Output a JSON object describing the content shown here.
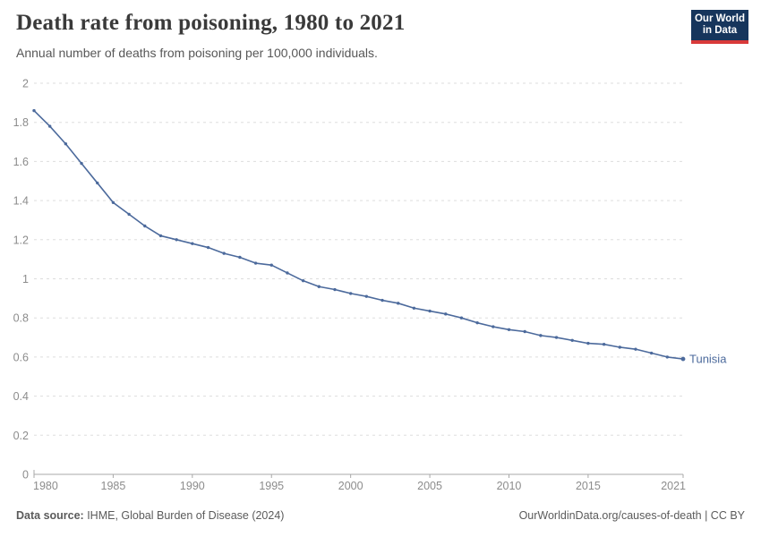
{
  "header": {
    "title": "Death rate from poisoning, 1980 to 2021",
    "subtitle": "Annual number of deaths from poisoning per 100,000 individuals.",
    "logo_line1": "Our World",
    "logo_line2": "in Data",
    "logo_bg_color": "#16355c",
    "logo_accent_color": "#d93a3a"
  },
  "footer": {
    "source_label": "Data source:",
    "source_value": " IHME, Global Burden of Disease (2024)",
    "link_text": "OurWorldinData.org/causes-of-death | CC BY"
  },
  "chart_data": {
    "type": "line",
    "title": "Death rate from poisoning, 1980 to 2021",
    "xlabel": "",
    "ylabel": "",
    "xlim": [
      1980,
      2021
    ],
    "ylim": [
      0,
      2
    ],
    "grid": "dashed-horizontal",
    "legend": "end-of-line-label",
    "xticks": [
      1980,
      1985,
      1990,
      1995,
      2000,
      2005,
      2010,
      2015,
      2021
    ],
    "yticks": [
      0,
      0.2,
      0.4,
      0.6,
      0.8,
      1,
      1.2,
      1.4,
      1.6,
      1.8,
      2
    ],
    "ytick_labels": [
      "0",
      "0.2",
      "0.4",
      "0.6",
      "0.8",
      "1",
      "1.2",
      "1.4",
      "1.6",
      "1.8",
      "2"
    ],
    "colors": {
      "line": "#4c6a9c",
      "grid": "#dddddd",
      "axis": "#a8a8a8",
      "tick_text": "#8c8c8c"
    },
    "series": [
      {
        "name": "Tunisia",
        "color": "#4c6a9c",
        "x": [
          1980,
          1981,
          1982,
          1983,
          1984,
          1985,
          1986,
          1987,
          1988,
          1989,
          1990,
          1991,
          1992,
          1993,
          1994,
          1995,
          1996,
          1997,
          1998,
          1999,
          2000,
          2001,
          2002,
          2003,
          2004,
          2005,
          2006,
          2007,
          2008,
          2009,
          2010,
          2011,
          2012,
          2013,
          2014,
          2015,
          2016,
          2017,
          2018,
          2019,
          2020,
          2021
        ],
        "values": [
          1.86,
          1.78,
          1.69,
          1.59,
          1.49,
          1.39,
          1.33,
          1.27,
          1.22,
          1.2,
          1.18,
          1.16,
          1.13,
          1.11,
          1.08,
          1.07,
          1.03,
          0.99,
          0.96,
          0.945,
          0.925,
          0.91,
          0.89,
          0.875,
          0.85,
          0.835,
          0.82,
          0.8,
          0.775,
          0.755,
          0.74,
          0.73,
          0.71,
          0.7,
          0.685,
          0.67,
          0.665,
          0.65,
          0.64,
          0.62,
          0.6,
          0.59
        ]
      }
    ]
  }
}
